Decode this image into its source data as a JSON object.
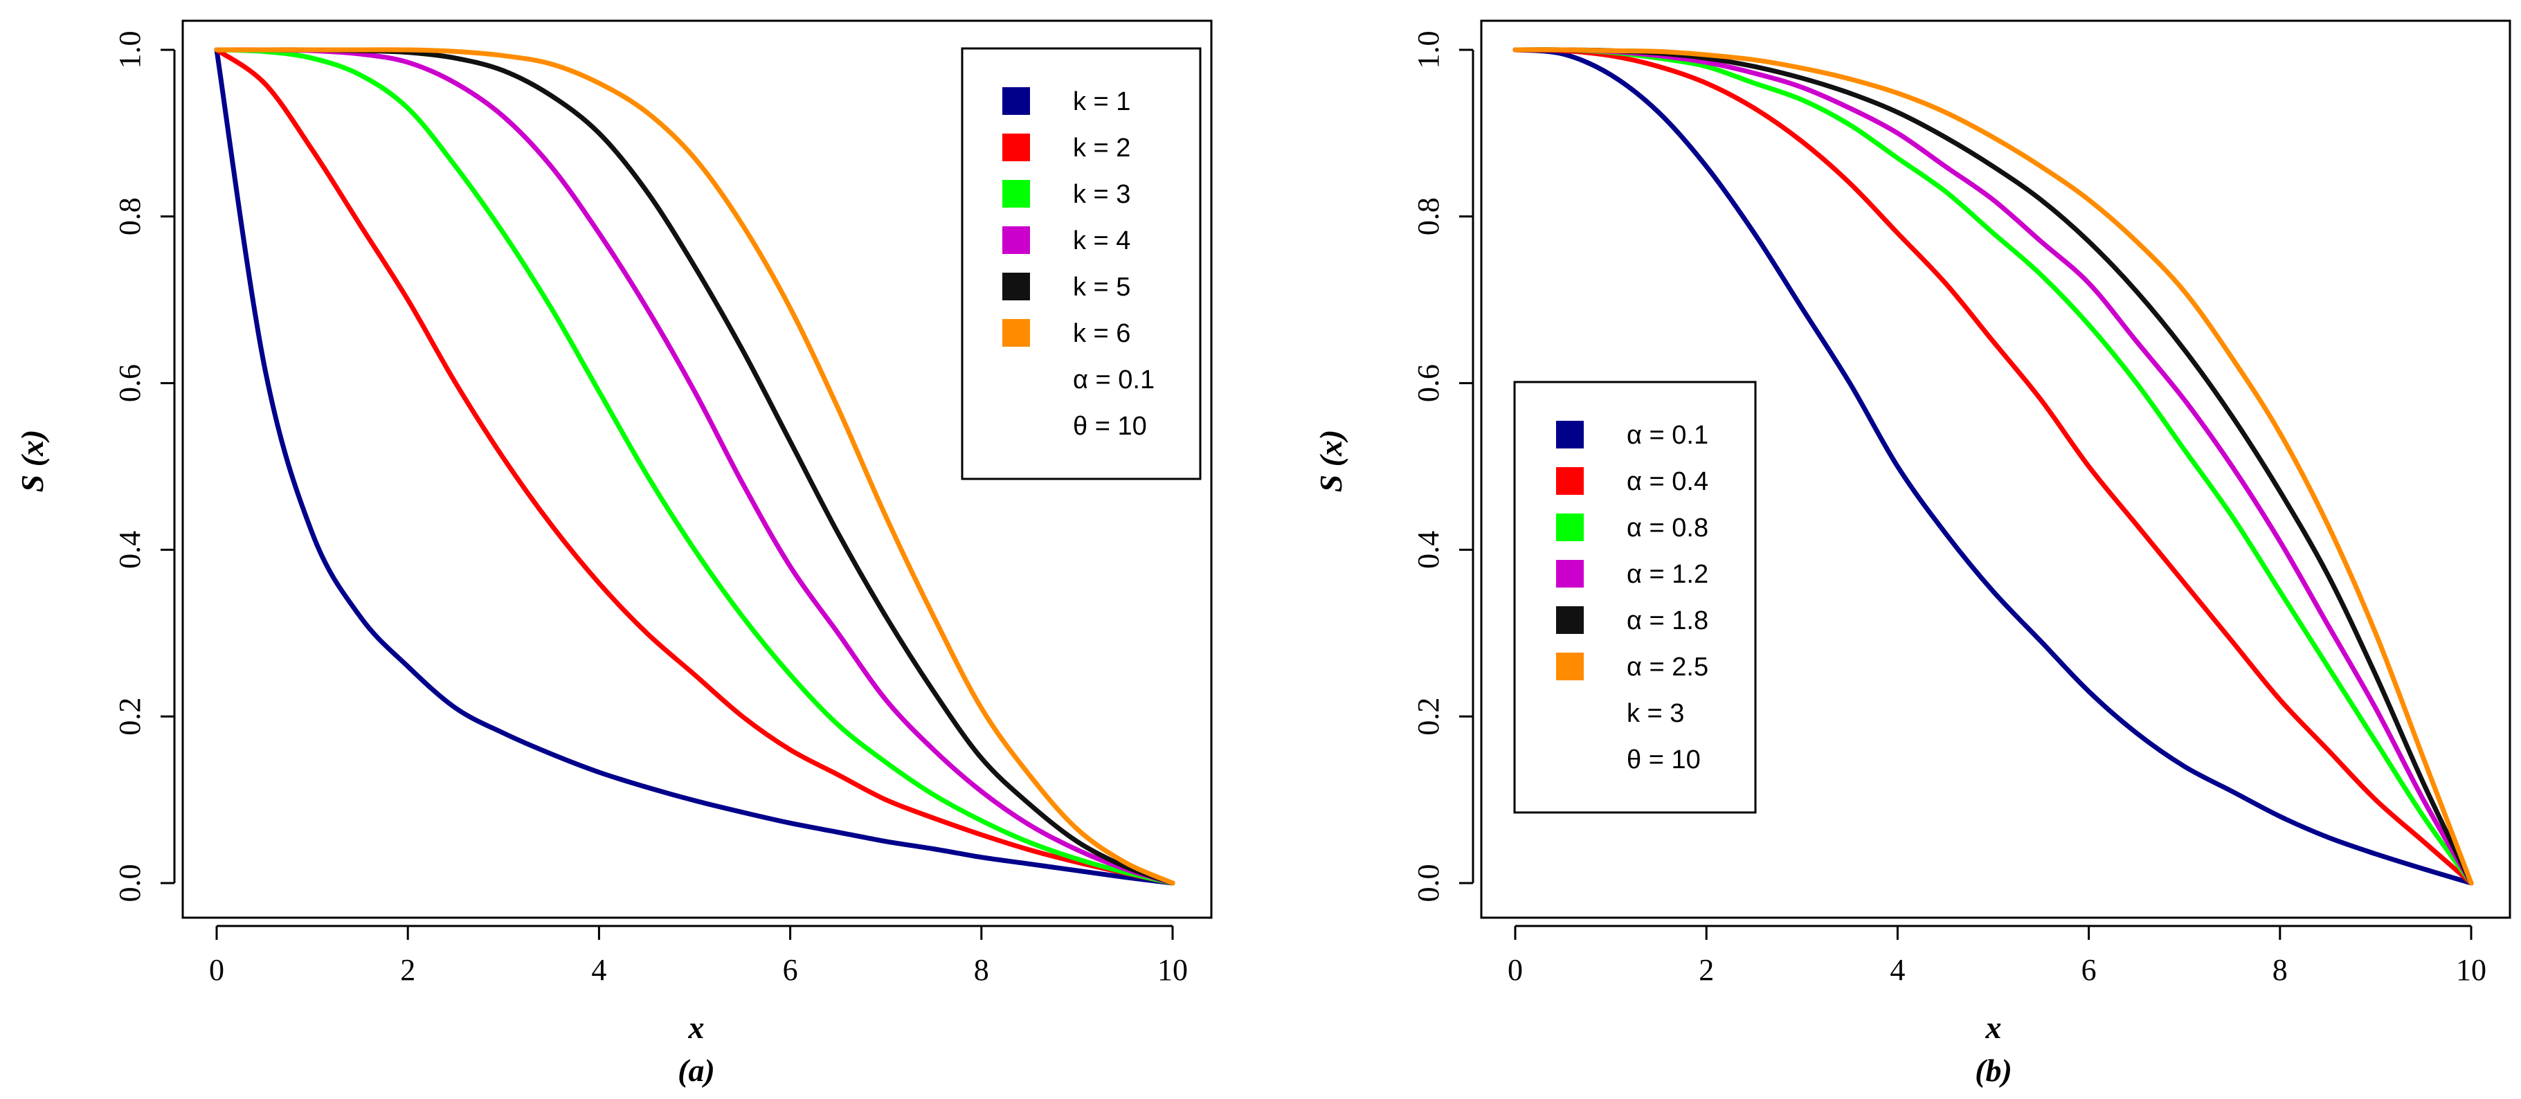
{
  "chart_data": [
    {
      "type": "line",
      "panel": "a",
      "caption": "(a)",
      "xlabel": "x",
      "ylabel": "S (x)",
      "xlim": [
        0,
        10
      ],
      "ylim": [
        0,
        1
      ],
      "xticks": [
        "0",
        "2",
        "4",
        "6",
        "8",
        "10"
      ],
      "yticks": [
        "0.0",
        "0.2",
        "0.4",
        "0.6",
        "0.8",
        "1.0"
      ],
      "x": [
        0,
        0.5,
        1,
        1.5,
        2,
        2.5,
        3,
        3.5,
        4,
        4.5,
        5,
        5.5,
        6,
        6.5,
        7,
        7.5,
        8,
        8.5,
        9,
        9.5,
        10
      ],
      "series": [
        {
          "name": "k = 1",
          "color": "#00008B",
          "values": [
            1.0,
            0.62,
            0.42,
            0.32,
            0.26,
            0.21,
            0.18,
            0.155,
            0.133,
            0.115,
            0.099,
            0.085,
            0.072,
            0.061,
            0.05,
            0.041,
            0.031,
            0.023,
            0.015,
            0.007,
            0.0
          ]
        },
        {
          "name": "k = 2",
          "color": "#FF0000",
          "values": [
            1.0,
            0.96,
            0.88,
            0.79,
            0.7,
            0.6,
            0.51,
            0.43,
            0.36,
            0.3,
            0.25,
            0.2,
            0.16,
            0.13,
            0.1,
            0.078,
            0.058,
            0.04,
            0.025,
            0.012,
            0.0
          ]
        },
        {
          "name": "k = 3",
          "color": "#00FF00",
          "values": [
            1.0,
            0.998,
            0.99,
            0.97,
            0.93,
            0.86,
            0.78,
            0.69,
            0.59,
            0.49,
            0.4,
            0.32,
            0.25,
            0.19,
            0.145,
            0.106,
            0.075,
            0.049,
            0.029,
            0.013,
            0.0
          ]
        },
        {
          "name": "k = 4",
          "color": "#CC00CC",
          "values": [
            1.0,
            1.0,
            0.999,
            0.995,
            0.985,
            0.96,
            0.92,
            0.86,
            0.78,
            0.69,
            0.59,
            0.48,
            0.38,
            0.3,
            0.22,
            0.16,
            0.11,
            0.07,
            0.04,
            0.017,
            0.0
          ]
        },
        {
          "name": "k = 5",
          "color": "#111111",
          "values": [
            1.0,
            1.0,
            1.0,
            0.999,
            0.997,
            0.99,
            0.975,
            0.945,
            0.9,
            0.83,
            0.74,
            0.64,
            0.53,
            0.42,
            0.32,
            0.23,
            0.15,
            0.095,
            0.05,
            0.02,
            0.0
          ]
        },
        {
          "name": "k = 6",
          "color": "#FF8C00",
          "values": [
            1.0,
            1.0,
            1.0,
            1.0,
            1.0,
            0.998,
            0.993,
            0.983,
            0.96,
            0.925,
            0.87,
            0.79,
            0.69,
            0.57,
            0.44,
            0.32,
            0.21,
            0.13,
            0.065,
            0.025,
            0.0
          ]
        }
      ],
      "legend_position": "top-right",
      "legend_items": [
        "k = 1",
        "k = 2",
        "k = 3",
        "k = 4",
        "k = 5",
        "k = 6"
      ],
      "legend_notes": [
        "α = 0.1",
        "θ = 10"
      ]
    },
    {
      "type": "line",
      "panel": "b",
      "caption": "(b)",
      "xlabel": "x",
      "ylabel": "S (x)",
      "xlim": [
        0,
        10
      ],
      "ylim": [
        0,
        1
      ],
      "xticks": [
        "0",
        "2",
        "4",
        "6",
        "8",
        "10"
      ],
      "yticks": [
        "0.0",
        "0.2",
        "0.4",
        "0.6",
        "0.8",
        "1.0"
      ],
      "x": [
        0,
        0.5,
        1,
        1.5,
        2,
        2.5,
        3,
        3.5,
        4,
        4.5,
        5,
        5.5,
        6,
        6.5,
        7,
        7.5,
        8,
        8.5,
        9,
        9.5,
        10
      ],
      "series": [
        {
          "name": "α = 0.1",
          "color": "#00008B",
          "values": [
            1.0,
            0.995,
            0.97,
            0.925,
            0.86,
            0.78,
            0.69,
            0.6,
            0.5,
            0.42,
            0.35,
            0.29,
            0.23,
            0.18,
            0.14,
            0.11,
            0.08,
            0.055,
            0.035,
            0.017,
            0.0
          ]
        },
        {
          "name": "α = 0.4",
          "color": "#FF0000",
          "values": [
            1.0,
            0.999,
            0.993,
            0.98,
            0.96,
            0.93,
            0.89,
            0.84,
            0.78,
            0.72,
            0.65,
            0.58,
            0.5,
            0.43,
            0.36,
            0.29,
            0.22,
            0.16,
            0.1,
            0.05,
            0.0
          ]
        },
        {
          "name": "α = 0.8",
          "color": "#00FF00",
          "values": [
            1.0,
            1.0,
            0.997,
            0.99,
            0.98,
            0.96,
            0.94,
            0.91,
            0.87,
            0.83,
            0.78,
            0.73,
            0.67,
            0.6,
            0.52,
            0.44,
            0.35,
            0.26,
            0.17,
            0.08,
            0.0
          ]
        },
        {
          "name": "α = 1.2",
          "color": "#CC00CC",
          "values": [
            1.0,
            1.0,
            0.998,
            0.993,
            0.985,
            0.972,
            0.955,
            0.93,
            0.9,
            0.86,
            0.82,
            0.77,
            0.72,
            0.65,
            0.58,
            0.5,
            0.41,
            0.31,
            0.21,
            0.1,
            0.0
          ]
        },
        {
          "name": "α = 1.8",
          "color": "#111111",
          "values": [
            1.0,
            1.0,
            0.999,
            0.996,
            0.99,
            0.98,
            0.966,
            0.948,
            0.925,
            0.895,
            0.86,
            0.82,
            0.77,
            0.71,
            0.64,
            0.56,
            0.47,
            0.37,
            0.25,
            0.12,
            0.0
          ]
        },
        {
          "name": "α = 2.5",
          "color": "#FF8C00",
          "values": [
            1.0,
            1.0,
            0.999,
            0.998,
            0.994,
            0.988,
            0.978,
            0.965,
            0.948,
            0.925,
            0.895,
            0.86,
            0.82,
            0.77,
            0.71,
            0.63,
            0.54,
            0.43,
            0.3,
            0.15,
            0.0
          ]
        }
      ],
      "legend_position": "center-left",
      "legend_items": [
        "α = 0.1",
        "α = 0.4",
        "α = 0.8",
        "α = 1.2",
        "α = 1.8",
        "α = 2.5"
      ],
      "legend_notes": [
        "k = 3",
        "θ = 10"
      ]
    }
  ]
}
